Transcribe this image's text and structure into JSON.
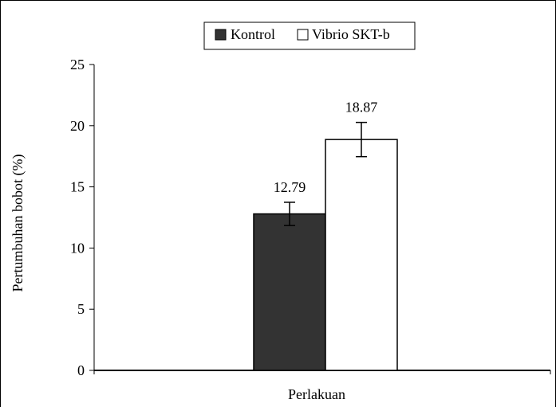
{
  "chart_data": {
    "type": "bar",
    "title": "",
    "xlabel": "Perlakuan",
    "ylabel": "Pertumbuhan bobot (%)",
    "ylim": [
      0,
      25
    ],
    "yticks": [
      0,
      5,
      10,
      15,
      20,
      25
    ],
    "categories": [
      "Perlakuan"
    ],
    "grid": false,
    "legend_position": "top-center",
    "series": [
      {
        "name": "Kontrol",
        "values": [
          12.79
        ],
        "error": [
          0.95
        ],
        "data_label": "12.79",
        "color": "#333333"
      },
      {
        "name": "Vibrio SKT-b",
        "values": [
          18.87
        ],
        "error": [
          1.4
        ],
        "data_label": "18.87",
        "color": "#ffffff"
      }
    ]
  }
}
